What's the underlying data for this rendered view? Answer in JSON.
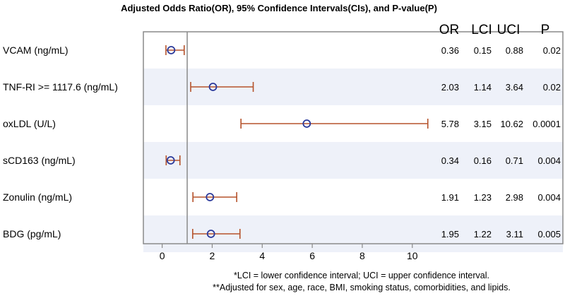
{
  "chart_data": {
    "type": "forest",
    "title": "Adjusted Odds Ratio(OR), 95% Confidence Intervals(CIs), and P-value(P)",
    "xlim": [
      -0.3,
      11.7
    ],
    "xticks": [
      0,
      2,
      4,
      6,
      8,
      10
    ],
    "reference_line": 1,
    "columns": [
      "OR",
      "LCI",
      "UCI",
      "P"
    ],
    "rows": [
      {
        "label": "VCAM (ng/mL)",
        "or": 0.36,
        "lci": 0.15,
        "uci": 0.88,
        "p": "0.02",
        "or_text": "0.36",
        "lci_text": "0.15",
        "uci_text": "0.88"
      },
      {
        "label": "TNF-RI >= 1117.6 (ng/mL)",
        "or": 2.03,
        "lci": 1.14,
        "uci": 3.64,
        "p": "0.02",
        "or_text": "2.03",
        "lci_text": "1.14",
        "uci_text": "3.64"
      },
      {
        "label": "oxLDL (U/L)",
        "or": 5.78,
        "lci": 3.15,
        "uci": 10.62,
        "p": "0.0001",
        "or_text": "5.78",
        "lci_text": "3.15",
        "uci_text": "10.62"
      },
      {
        "label": "sCD163 (ng/mL)",
        "or": 0.34,
        "lci": 0.16,
        "uci": 0.71,
        "p": "0.004",
        "or_text": "0.34",
        "lci_text": "0.16",
        "uci_text": "0.71"
      },
      {
        "label": "Zonulin (ng/mL)",
        "or": 1.91,
        "lci": 1.23,
        "uci": 2.98,
        "p": "0.004",
        "or_text": "1.91",
        "lci_text": "1.23",
        "uci_text": "2.98"
      },
      {
        "label": "BDG (pg/mL)",
        "or": 1.95,
        "lci": 1.22,
        "uci": 3.11,
        "p": "0.005",
        "or_text": "1.95",
        "lci_text": "1.22",
        "uci_text": "3.11"
      }
    ],
    "footnotes": [
      "*LCI = lower confidence interval; UCI = upper confidence interval.",
      "**Adjusted for sex, age, race, BMI, smoking status, comorbidities, and lipids."
    ],
    "colors": {
      "marker": "#2b3a9b",
      "whisker": "#b5522b",
      "band": "#eef1f9",
      "frame": "#8a8a8a",
      "refline": "#8a8a8a"
    }
  }
}
